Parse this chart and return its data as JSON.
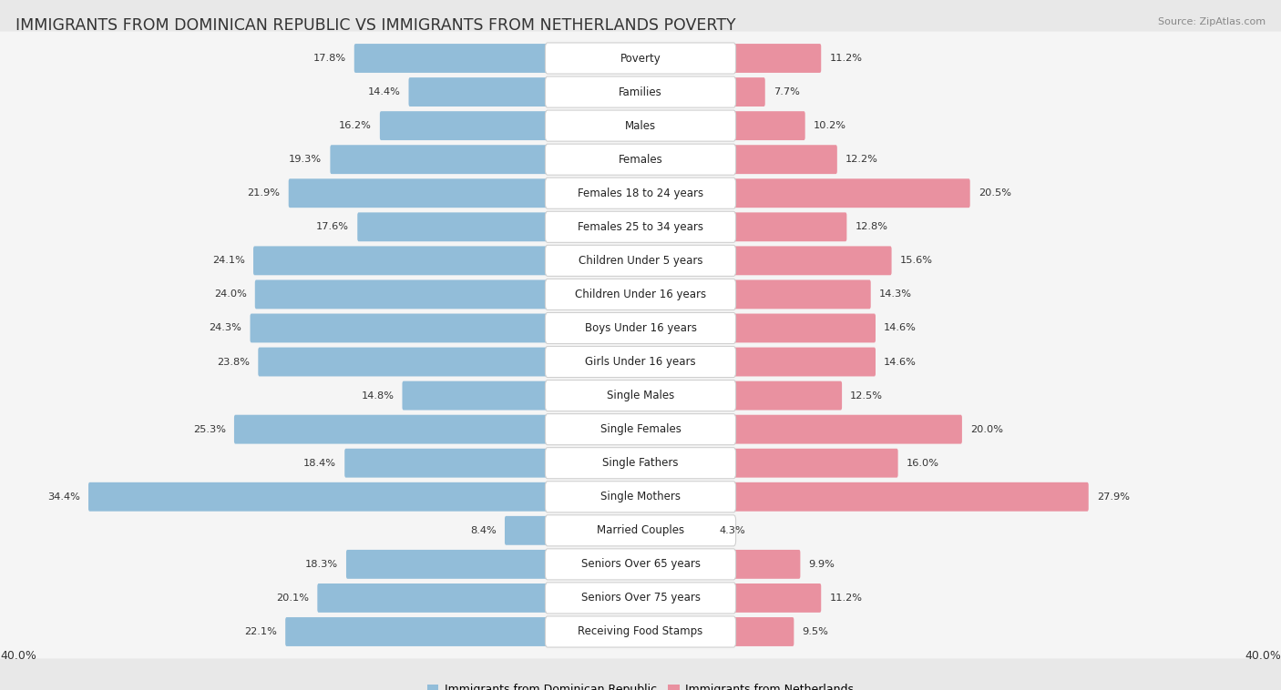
{
  "title": "IMMIGRANTS FROM DOMINICAN REPUBLIC VS IMMIGRANTS FROM NETHERLANDS POVERTY",
  "source": "Source: ZipAtlas.com",
  "categories": [
    "Poverty",
    "Families",
    "Males",
    "Females",
    "Females 18 to 24 years",
    "Females 25 to 34 years",
    "Children Under 5 years",
    "Children Under 16 years",
    "Boys Under 16 years",
    "Girls Under 16 years",
    "Single Males",
    "Single Females",
    "Single Fathers",
    "Single Mothers",
    "Married Couples",
    "Seniors Over 65 years",
    "Seniors Over 75 years",
    "Receiving Food Stamps"
  ],
  "left_values": [
    17.8,
    14.4,
    16.2,
    19.3,
    21.9,
    17.6,
    24.1,
    24.0,
    24.3,
    23.8,
    14.8,
    25.3,
    18.4,
    34.4,
    8.4,
    18.3,
    20.1,
    22.1
  ],
  "right_values": [
    11.2,
    7.7,
    10.2,
    12.2,
    20.5,
    12.8,
    15.6,
    14.3,
    14.6,
    14.6,
    12.5,
    20.0,
    16.0,
    27.9,
    4.3,
    9.9,
    11.2,
    9.5
  ],
  "left_color": "#92bdd9",
  "right_color": "#e991a0",
  "max_val": 40.0,
  "legend_left": "Immigrants from Dominican Republic",
  "legend_right": "Immigrants from Netherlands",
  "background_color": "#e8e8e8",
  "row_bg_color": "#f5f5f5",
  "bar_bg_color": "#ffffff",
  "title_fontsize": 12.5,
  "label_fontsize": 8.5,
  "value_fontsize": 8.2
}
